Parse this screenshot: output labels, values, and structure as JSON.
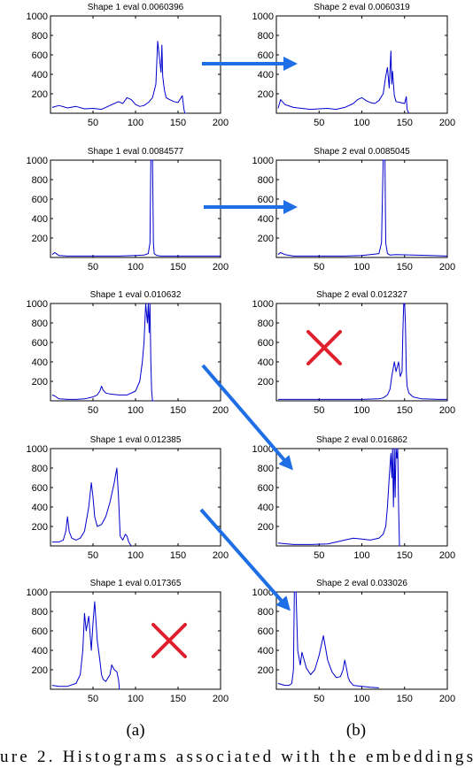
{
  "figure": {
    "column_labels": [
      "(a)",
      "(b)"
    ],
    "caption": "ure 2. Histograms associated with the embeddings"
  },
  "colors": {
    "series": "#0000cc",
    "match_arrow": "#1e6ee6",
    "reject_cross": "#e01f2d"
  },
  "chart_data": [
    {
      "type": "line",
      "title": "Shape 1 eval 0.0060396",
      "xlim": [
        0,
        200
      ],
      "ylim": [
        0,
        1000
      ],
      "xticks": [
        50,
        100,
        150,
        200
      ],
      "yticks": [
        200,
        400,
        600,
        800,
        1000
      ],
      "series": [
        {
          "x": [
            2,
            10,
            20,
            30,
            40,
            50,
            55,
            60,
            70,
            80,
            85,
            90,
            95,
            100,
            105,
            110,
            115,
            120,
            124,
            126,
            128,
            130,
            131,
            132,
            134,
            136,
            140,
            145,
            150,
            155,
            157,
            158,
            160
          ],
          "values": [
            60,
            80,
            55,
            70,
            45,
            50,
            45,
            40,
            80,
            120,
            100,
            160,
            140,
            90,
            70,
            80,
            110,
            160,
            300,
            740,
            580,
            420,
            700,
            380,
            240,
            160,
            140,
            120,
            110,
            180,
            40,
            0,
            0
          ]
        }
      ]
    },
    {
      "type": "line",
      "title": "Shape 2 eval 0.0060319",
      "xlim": [
        0,
        200
      ],
      "ylim": [
        0,
        1000
      ],
      "xticks": [
        50,
        100,
        150,
        200
      ],
      "yticks": [
        200,
        400,
        600,
        800,
        1000
      ],
      "series": [
        {
          "x": [
            2,
            5,
            10,
            20,
            30,
            40,
            50,
            60,
            70,
            80,
            90,
            95,
            100,
            105,
            110,
            115,
            120,
            125,
            128,
            130,
            132,
            134,
            135,
            136,
            138,
            140,
            145,
            150,
            152,
            153,
            155
          ],
          "values": [
            50,
            140,
            90,
            60,
            50,
            40,
            45,
            50,
            40,
            60,
            100,
            140,
            160,
            130,
            110,
            100,
            130,
            200,
            380,
            470,
            260,
            640,
            300,
            430,
            180,
            120,
            110,
            100,
            170,
            40,
            0
          ]
        }
      ]
    },
    {
      "type": "line",
      "title": "Shape 1 eval 0.0084577",
      "xlim": [
        0,
        200
      ],
      "ylim": [
        0,
        1000
      ],
      "xticks": [
        50,
        100,
        150,
        200
      ],
      "yticks": [
        200,
        400,
        600,
        800,
        1000
      ],
      "series": [
        {
          "x": [
            2,
            5,
            10,
            20,
            40,
            60,
            80,
            100,
            110,
            115,
            117,
            118,
            119,
            120,
            121,
            122,
            125,
            130,
            150,
            170,
            190,
            200
          ],
          "values": [
            30,
            50,
            20,
            15,
            15,
            15,
            15,
            20,
            25,
            40,
            150,
            1000,
            1000,
            1000,
            150,
            40,
            20,
            15,
            15,
            15,
            15,
            15
          ]
        }
      ]
    },
    {
      "type": "line",
      "title": "Shape 2 eval 0.0085045",
      "xlim": [
        0,
        200
      ],
      "ylim": [
        0,
        1000
      ],
      "xticks": [
        50,
        100,
        150,
        200
      ],
      "yticks": [
        200,
        400,
        600,
        800,
        1000
      ],
      "series": [
        {
          "x": [
            2,
            5,
            10,
            20,
            40,
            60,
            80,
            100,
            110,
            120,
            123,
            125,
            126,
            127,
            128,
            130,
            133,
            140,
            160,
            180,
            200
          ],
          "values": [
            30,
            50,
            30,
            15,
            15,
            15,
            15,
            20,
            30,
            40,
            150,
            1000,
            1000,
            1000,
            150,
            40,
            25,
            30,
            25,
            20,
            15
          ]
        }
      ]
    },
    {
      "type": "line",
      "title": "Shape 1 eval 0.010632",
      "xlim": [
        0,
        200
      ],
      "ylim": [
        0,
        1000
      ],
      "xticks": [
        50,
        100,
        150,
        200
      ],
      "yticks": [
        200,
        400,
        600,
        800,
        1000
      ],
      "series": [
        {
          "x": [
            2,
            5,
            10,
            20,
            30,
            40,
            50,
            55,
            58,
            60,
            62,
            65,
            70,
            80,
            90,
            100,
            105,
            108,
            110,
            112,
            114,
            115,
            116,
            117,
            118,
            119,
            120,
            121,
            122
          ],
          "values": [
            60,
            50,
            20,
            15,
            15,
            20,
            40,
            60,
            100,
            150,
            110,
            80,
            70,
            60,
            60,
            100,
            200,
            400,
            600,
            1000,
            800,
            1000,
            700,
            1000,
            400,
            100,
            0,
            0,
            0
          ]
        }
      ]
    },
    {
      "type": "line",
      "title": "Shape 2 eval 0.012327",
      "xlim": [
        0,
        200
      ],
      "ylim": [
        0,
        1000
      ],
      "xticks": [
        50,
        100,
        150,
        200
      ],
      "yticks": [
        200,
        400,
        600,
        800,
        1000
      ],
      "series": [
        {
          "x": [
            2,
            20,
            40,
            60,
            80,
            100,
            120,
            125,
            130,
            133,
            135,
            138,
            140,
            143,
            145,
            147,
            148,
            149,
            150,
            151,
            152,
            153,
            155,
            160,
            170,
            190,
            200
          ],
          "values": [
            15,
            15,
            15,
            15,
            15,
            15,
            20,
            30,
            60,
            120,
            250,
            400,
            300,
            400,
            250,
            300,
            700,
            1000,
            1000,
            800,
            300,
            150,
            80,
            40,
            20,
            15,
            15
          ]
        }
      ]
    },
    {
      "type": "line",
      "title": "Shape 1 eval 0.012385",
      "xlim": [
        0,
        200
      ],
      "ylim": [
        0,
        1000
      ],
      "xticks": [
        50,
        100,
        150,
        200
      ],
      "yticks": [
        200,
        400,
        600,
        800,
        1000
      ],
      "series": [
        {
          "x": [
            2,
            10,
            15,
            18,
            20,
            22,
            25,
            30,
            35,
            40,
            45,
            48,
            50,
            52,
            55,
            60,
            65,
            70,
            75,
            78,
            80,
            82,
            85,
            88,
            90,
            92,
            95
          ],
          "values": [
            40,
            40,
            60,
            150,
            300,
            150,
            80,
            60,
            80,
            150,
            400,
            650,
            500,
            300,
            200,
            220,
            300,
            450,
            650,
            800,
            500,
            100,
            60,
            120,
            100,
            40,
            0
          ]
        }
      ]
    },
    {
      "type": "line",
      "title": "Shape 2 eval 0.016862",
      "xlim": [
        0,
        200
      ],
      "ylim": [
        0,
        1000
      ],
      "xticks": [
        50,
        100,
        150,
        200
      ],
      "yticks": [
        200,
        400,
        600,
        800,
        1000
      ],
      "series": [
        {
          "x": [
            2,
            20,
            40,
            60,
            70,
            80,
            90,
            100,
            110,
            120,
            125,
            128,
            130,
            132,
            134,
            135,
            136,
            137,
            138,
            139,
            140,
            141,
            142,
            143,
            144,
            145
          ],
          "values": [
            30,
            15,
            15,
            20,
            40,
            60,
            80,
            70,
            60,
            80,
            120,
            200,
            400,
            700,
            950,
            700,
            1000,
            400,
            1000,
            500,
            1000,
            900,
            1000,
            400,
            0,
            0
          ]
        }
      ]
    },
    {
      "type": "line",
      "title": "Shape 1 eval 0.017365",
      "xlim": [
        0,
        200
      ],
      "ylim": [
        0,
        1000
      ],
      "xticks": [
        50,
        100,
        150,
        200
      ],
      "yticks": [
        200,
        400,
        600,
        800,
        1000
      ],
      "series": [
        {
          "x": [
            2,
            10,
            20,
            30,
            35,
            38,
            40,
            42,
            45,
            48,
            50,
            52,
            55,
            58,
            60,
            62,
            65,
            70,
            72,
            75,
            78,
            80,
            81,
            82
          ],
          "values": [
            40,
            30,
            30,
            60,
            150,
            400,
            780,
            600,
            750,
            400,
            680,
            900,
            500,
            300,
            150,
            100,
            80,
            150,
            250,
            200,
            180,
            100,
            0,
            0
          ]
        }
      ]
    },
    {
      "type": "line",
      "title": "Shape 2 eval 0.033026",
      "xlim": [
        0,
        200
      ],
      "ylim": [
        0,
        1000
      ],
      "xticks": [
        50,
        100,
        150,
        200
      ],
      "yticks": [
        200,
        400,
        600,
        800,
        1000
      ],
      "series": [
        {
          "x": [
            2,
            10,
            15,
            18,
            20,
            21,
            22,
            23,
            25,
            28,
            30,
            35,
            40,
            45,
            50,
            55,
            60,
            65,
            70,
            75,
            78,
            80,
            82,
            84,
            86,
            90,
            100,
            110,
            120
          ],
          "values": [
            60,
            40,
            40,
            60,
            200,
            1000,
            1000,
            1000,
            400,
            250,
            380,
            220,
            150,
            200,
            350,
            550,
            300,
            180,
            120,
            130,
            200,
            300,
            220,
            120,
            80,
            40,
            30,
            20,
            15
          ]
        }
      ]
    }
  ]
}
